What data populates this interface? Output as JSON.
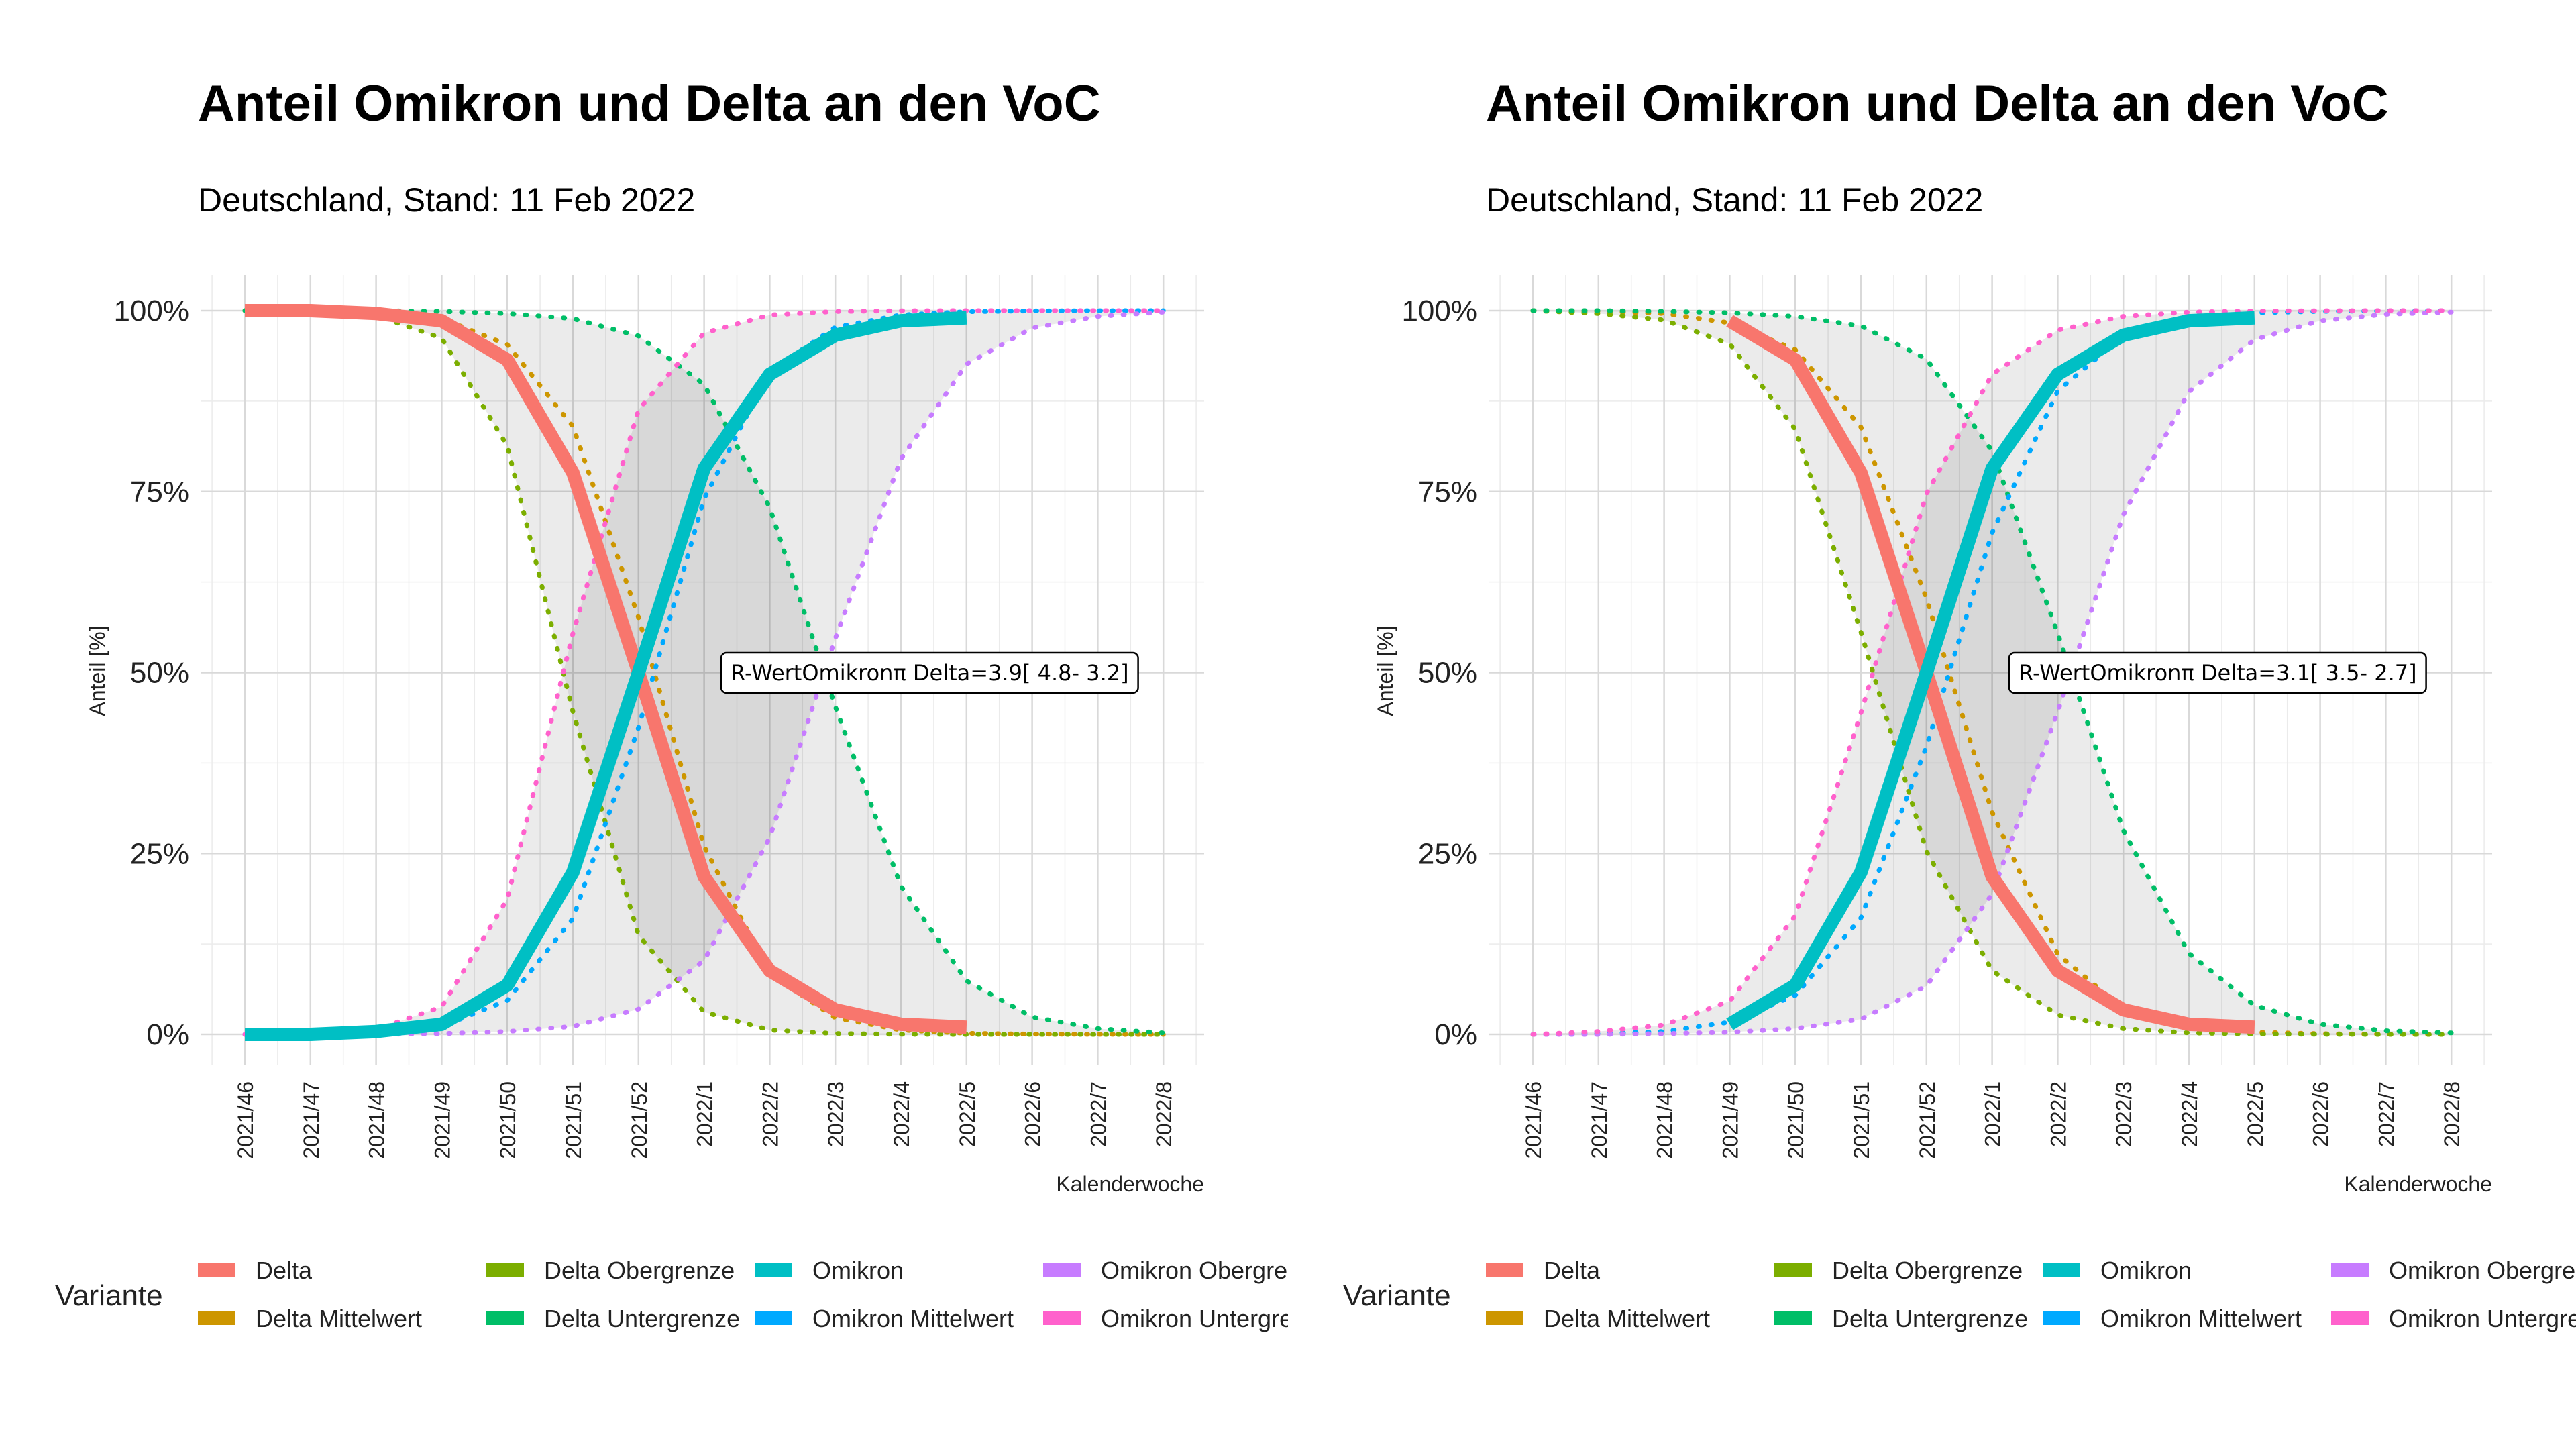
{
  "ylabel": "Anteil [%]",
  "xlabel": "Kalenderwoche",
  "legend_title": "Variante",
  "y_tick_labels": [
    "0%",
    "25%",
    "50%",
    "75%",
    "100%"
  ],
  "colors": {
    "Delta": "#F8766D",
    "Delta Mittelwert": "#CD9600",
    "Delta Obergrenze": "#7CAE00",
    "Delta Untergrenze": "#00BE67",
    "Omikron": "#00BFC4",
    "Omikron Mittelwert": "#00A9FF",
    "Omikron Obergrenze": "#C77CFF",
    "Omikron Untergrenze": "#FF61CC"
  },
  "legend_items": [
    "Delta",
    "Delta Mittelwert",
    "Delta Obergrenze",
    "Delta Untergrenze",
    "Omikron",
    "Omikron Mittelwert",
    "Omikron Obergrenze",
    "Omikron Untergrenze"
  ],
  "chart_data": [
    {
      "type": "line",
      "title": "Anteil Omikron und Delta an den VoC",
      "subtitle": "Deutschland, Stand: 11 Feb 2022",
      "xlabel": "Kalenderwoche",
      "ylabel": "Anteil [%]",
      "x": [
        "2021/46",
        "2021/47",
        "2021/48",
        "2021/49",
        "2021/50",
        "2021/51",
        "2021/52",
        "2022/1",
        "2022/2",
        "2022/3",
        "2022/4",
        "2022/5",
        "2022/6",
        "2022/7",
        "2022/8"
      ],
      "ylim": [
        0,
        100
      ],
      "annotation": "R-WertOmikronπ Delta=3.9[ 4.8- 3.2]",
      "observed": {
        "Delta": [
          100,
          100,
          99.6,
          98.6,
          93.2,
          77.6,
          50.0,
          21.8,
          8.8,
          3.4,
          1.4,
          1.0
        ],
        "Omikron": [
          0,
          0,
          0.4,
          1.4,
          6.8,
          22.4,
          50.0,
          78.2,
          91.2,
          96.6,
          98.6,
          99.0
        ]
      },
      "fitted": {
        "Delta Mittelwert": [
          100,
          100,
          99.8,
          98.9,
          95.3,
          84.0,
          57.6,
          26.0,
          8.4,
          2.3,
          0.6,
          0.15,
          0.04,
          0.01,
          0
        ],
        "Delta Obergrenze": [
          100,
          99.9,
          99.3,
          96.2,
          81.3,
          44.6,
          13.7,
          3.1,
          0.6,
          0.12,
          0.02,
          0,
          0,
          0,
          0
        ],
        "Delta Untergrenze": [
          100,
          100,
          100,
          99.9,
          99.6,
          98.9,
          96.5,
          89.8,
          72.8,
          45.3,
          20.5,
          7.4,
          2.4,
          0.8,
          0.2
        ],
        "Omikron Mittelwert": [
          0,
          0,
          0.2,
          1.1,
          4.7,
          16.0,
          42.4,
          74.0,
          91.6,
          97.7,
          99.4,
          99.85,
          99.96,
          99.99,
          100
        ],
        "Omikron Obergrenze": [
          0,
          0,
          0,
          0.1,
          0.4,
          1.1,
          3.5,
          10.2,
          27.2,
          54.7,
          79.5,
          92.6,
          97.6,
          99.2,
          99.8
        ],
        "Omikron Untergrenze": [
          0,
          0.1,
          0.7,
          3.8,
          18.7,
          55.4,
          86.3,
          96.9,
          99.4,
          99.88,
          99.98,
          100,
          100,
          100,
          100
        ]
      }
    },
    {
      "type": "line",
      "title": "Anteil Omikron und Delta an den VoC",
      "subtitle": "Deutschland, Stand: 11 Feb 2022",
      "xlabel": "Kalenderwoche",
      "ylabel": "Anteil [%]",
      "x": [
        "2021/46",
        "2021/47",
        "2021/48",
        "2021/49",
        "2021/50",
        "2021/51",
        "2021/52",
        "2022/1",
        "2022/2",
        "2022/3",
        "2022/4",
        "2022/5",
        "2022/6",
        "2022/7",
        "2022/8"
      ],
      "ylim": [
        0,
        100
      ],
      "annotation": "R-WertOmikronπ Delta=3.1[ 3.5- 2.7]",
      "observed": {
        "Delta": [
          null,
          null,
          null,
          98.6,
          93.2,
          77.6,
          50.0,
          21.8,
          8.8,
          3.4,
          1.4,
          1.0
        ],
        "Omikron": [
          null,
          null,
          null,
          1.4,
          6.8,
          22.4,
          50.0,
          78.2,
          91.2,
          96.6,
          98.6,
          99.0
        ]
      },
      "fitted": {
        "Delta Mittelwert": [
          100,
          99.9,
          99.6,
          98.3,
          94.6,
          83.9,
          60.2,
          30.7,
          11.1,
          3.5,
          1.1,
          0.3,
          0.09,
          0.03,
          0.01
        ],
        "Delta Obergrenze": [
          100,
          99.6,
          98.7,
          95.4,
          83.6,
          55.6,
          25.3,
          8.8,
          2.7,
          0.8,
          0.2,
          0.06,
          0.02,
          0,
          0
        ],
        "Delta Untergrenze": [
          100,
          100,
          99.9,
          99.7,
          99.2,
          97.9,
          93.3,
          80.6,
          55.4,
          28.2,
          11.2,
          4.0,
          1.4,
          0.5,
          0.2
        ],
        "Omikron Mittelwert": [
          0,
          0.1,
          0.4,
          1.7,
          5.4,
          16.1,
          39.8,
          69.3,
          88.9,
          96.5,
          98.9,
          99.7,
          99.9,
          99.97,
          99.99
        ],
        "Omikron Obergrenze": [
          0,
          0,
          0.1,
          0.3,
          0.8,
          2.1,
          6.7,
          19.4,
          44.6,
          71.8,
          88.8,
          96.0,
          98.6,
          99.5,
          99.8
        ],
        "Omikron Untergrenze": [
          0,
          0.4,
          1.3,
          4.6,
          16.4,
          44.4,
          74.7,
          91.2,
          97.3,
          99.2,
          99.8,
          99.94,
          99.98,
          100,
          100
        ]
      }
    }
  ]
}
